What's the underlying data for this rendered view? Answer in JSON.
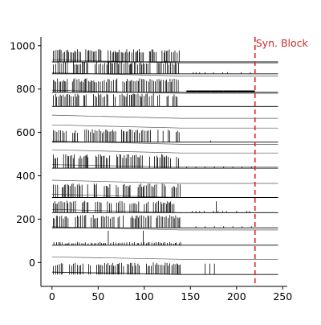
{
  "chart_data": {
    "type": "line",
    "title": "",
    "xlabel": "",
    "ylabel": "",
    "xlim": [
      -12,
      255
    ],
    "ylim": [
      -110,
      1040
    ],
    "x_ticks": [
      0,
      50,
      100,
      150,
      200,
      250
    ],
    "y_ticks": [
      0,
      200,
      400,
      600,
      800,
      1000
    ],
    "x_tick_labels": [
      "0",
      "50",
      "100",
      "150",
      "200",
      "250"
    ],
    "y_tick_labels": [
      "0",
      "200",
      "400",
      "600",
      "800",
      "1000"
    ],
    "trace_x_range": [
      0,
      245
    ],
    "series": [
      {
        "baseline": -55,
        "peak": 0,
        "sample": true,
        "mode": "dense",
        "active_end": 140,
        "rise": 3,
        "after": [
          166,
          171,
          176
        ],
        "after_height": 0.9
      },
      {
        "baseline": 15,
        "peak": 30,
        "sample": false,
        "mode": "dense",
        "active_end": 140,
        "rise": 3,
        "after": [],
        "after_height": 0
      },
      {
        "baseline": 80,
        "peak": 85,
        "sample": true,
        "mode": "sparse",
        "active_end": 140,
        "rise": 0,
        "spikes": [
          61,
          99
        ],
        "after": [],
        "after_height": 0
      },
      {
        "baseline": 150,
        "peak": 165,
        "sample": false,
        "mode": "dense",
        "active_end": 140,
        "rise": 4,
        "after": [],
        "after_height": 0
      },
      {
        "baseline": 160,
        "peak": 220,
        "sample": true,
        "mode": "dense",
        "active_end": 140,
        "rise": 0,
        "after": [
          156,
          166,
          176,
          186,
          196,
          206,
          216
        ],
        "after_height": 0.1
      },
      {
        "baseline": 230,
        "peak": 235,
        "sample": false,
        "mode": "dense",
        "active_end": 140,
        "rise": 4,
        "after": [],
        "after_height": 0
      },
      {
        "baseline": 230,
        "peak": 285,
        "sample": true,
        "mode": "dense",
        "active_end": 140,
        "rise": 0,
        "after": [
          152,
          156,
          160,
          165,
          175,
          180,
          185,
          189,
          200,
          211,
          214
        ],
        "after_height": 0.1,
        "big_after": [
          178
        ],
        "big_after_height": 0.95
      },
      {
        "baseline": 300,
        "peak": 300,
        "sample": false,
        "mode": "dense",
        "active_end": 140,
        "rise": 4,
        "after": [],
        "after_height": 0
      },
      {
        "baseline": 300,
        "peak": 365,
        "sample": true,
        "mode": "dense",
        "active_end": 140,
        "rise": 0,
        "after": [],
        "after_height": 0
      },
      {
        "baseline": 365,
        "peak": 365,
        "sample": false,
        "mode": "dense",
        "active_end": 140,
        "rise": 4,
        "after": [],
        "after_height": 0
      },
      {
        "baseline": 440,
        "peak": 440,
        "sample": false,
        "mode": "dense",
        "active_end": 140,
        "rise": 3,
        "after": [],
        "after_height": 0
      },
      {
        "baseline": 435,
        "peak": 500,
        "sample": true,
        "mode": "dense",
        "active_end": 140,
        "rise": 0,
        "after": [
          146,
          156,
          166,
          176,
          186,
          196,
          206,
          216
        ],
        "after_height": 0.1
      },
      {
        "baseline": 505,
        "peak": 505,
        "sample": false,
        "mode": "dense",
        "active_end": 140,
        "rise": 4,
        "after": [],
        "after_height": 0
      },
      {
        "baseline": 545,
        "peak": 570,
        "sample": false,
        "mode": "dense",
        "active_end": 140,
        "rise": 4,
        "after": [],
        "after_height": 0
      },
      {
        "baseline": 555,
        "peak": 615,
        "sample": true,
        "mode": "dense",
        "active_end": 140,
        "rise": 0,
        "after": [
          172
        ],
        "after_height": 0.1
      },
      {
        "baseline": 620,
        "peak": 640,
        "sample": false,
        "mode": "dense",
        "active_end": 140,
        "rise": 4,
        "after": [],
        "after_height": 0
      },
      {
        "baseline": 665,
        "peak": 665,
        "sample": false,
        "mode": "dense",
        "active_end": 140,
        "rise": 4,
        "after": [],
        "after_height": 0
      },
      {
        "baseline": 720,
        "peak": 780,
        "sample": true,
        "mode": "dense",
        "active_end": 140,
        "rise": 0,
        "after": [],
        "after_height": 0
      },
      {
        "baseline": 780,
        "peak": 790,
        "sample": false,
        "mode": "dense",
        "active_end": 140,
        "rise": 4,
        "after": [],
        "after_height": 0
      },
      {
        "baseline": 785,
        "peak": 850,
        "sample": true,
        "mode": "dense",
        "active_end": 140,
        "rise": 0,
        "after": [],
        "after_height": 0,
        "tonic_after": true
      },
      {
        "baseline": 860,
        "peak": 860,
        "sample": false,
        "mode": "dense",
        "active_end": 140,
        "rise": 4,
        "after": [],
        "after_height": 0
      },
      {
        "baseline": 870,
        "peak": 930,
        "sample": true,
        "mode": "dense",
        "active_end": 140,
        "rise": 0,
        "after": [
          153,
          156,
          160,
          166,
          175,
          185,
          190,
          205,
          215
        ],
        "after_height": 0.1
      },
      {
        "baseline": 920,
        "peak": 940,
        "sample": false,
        "mode": "dense",
        "active_end": 140,
        "rise": 4,
        "after": [],
        "after_height": 0
      },
      {
        "baseline": 925,
        "peak": 985,
        "sample": true,
        "mode": "dense",
        "active_end": 140,
        "rise": 0,
        "after": [],
        "after_height": 0
      }
    ],
    "annotations": [
      {
        "type": "vline",
        "x": 220,
        "style": "dashed",
        "color": "#d62728",
        "text": "Syn. Block"
      }
    ],
    "grid": false,
    "legend": "none"
  }
}
